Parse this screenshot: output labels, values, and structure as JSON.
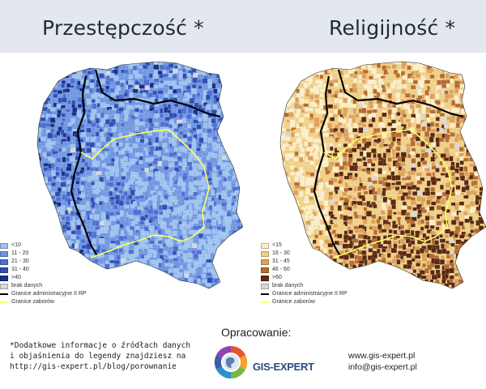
{
  "maps": [
    {
      "title": "Przestępczość *",
      "legend": [
        {
          "label": "<10",
          "color": "#9fc3ef"
        },
        {
          "label": "11 - 20",
          "color": "#6f96e0"
        },
        {
          "label": "21 - 30",
          "color": "#4d6fd2"
        },
        {
          "label": "31 - 40",
          "color": "#2f4fb6"
        },
        {
          "label": ">40",
          "color": "#1a2f8a"
        },
        {
          "label": "brak danych",
          "color": "#d9d9d9"
        },
        {
          "label": "Granice administracyjne II RP",
          "color": "#000000"
        },
        {
          "label": "Granice zaborów",
          "color": "#ffff66"
        }
      ]
    },
    {
      "title": "Religijność *",
      "legend": [
        {
          "label": "<15",
          "color": "#fbeecb"
        },
        {
          "label": "16 - 30",
          "color": "#f0cf85"
        },
        {
          "label": "31 - 45",
          "color": "#dca25a"
        },
        {
          "label": "46 - 60",
          "color": "#b66b2f"
        },
        {
          "label": ">60",
          "color": "#5a2910"
        },
        {
          "label": "brak danych",
          "color": "#d9d9d9"
        },
        {
          "label": "Granice administracyjne II RP",
          "color": "#000000"
        },
        {
          "label": "Granice zaborów",
          "color": "#ffff66"
        }
      ]
    }
  ],
  "footer": {
    "note_lines": [
      "*Dodatkowe informacje o źródłach danych",
      "i objaśnienia do legendy znajdziesz na",
      "http://gis-expert.pl/blog/porownanie"
    ],
    "credit_label": "Opracowanie:",
    "brand_name": "GIS-EXPERT",
    "website": "www.gis-expert.pl",
    "email": "info@gis-expert.pl"
  }
}
